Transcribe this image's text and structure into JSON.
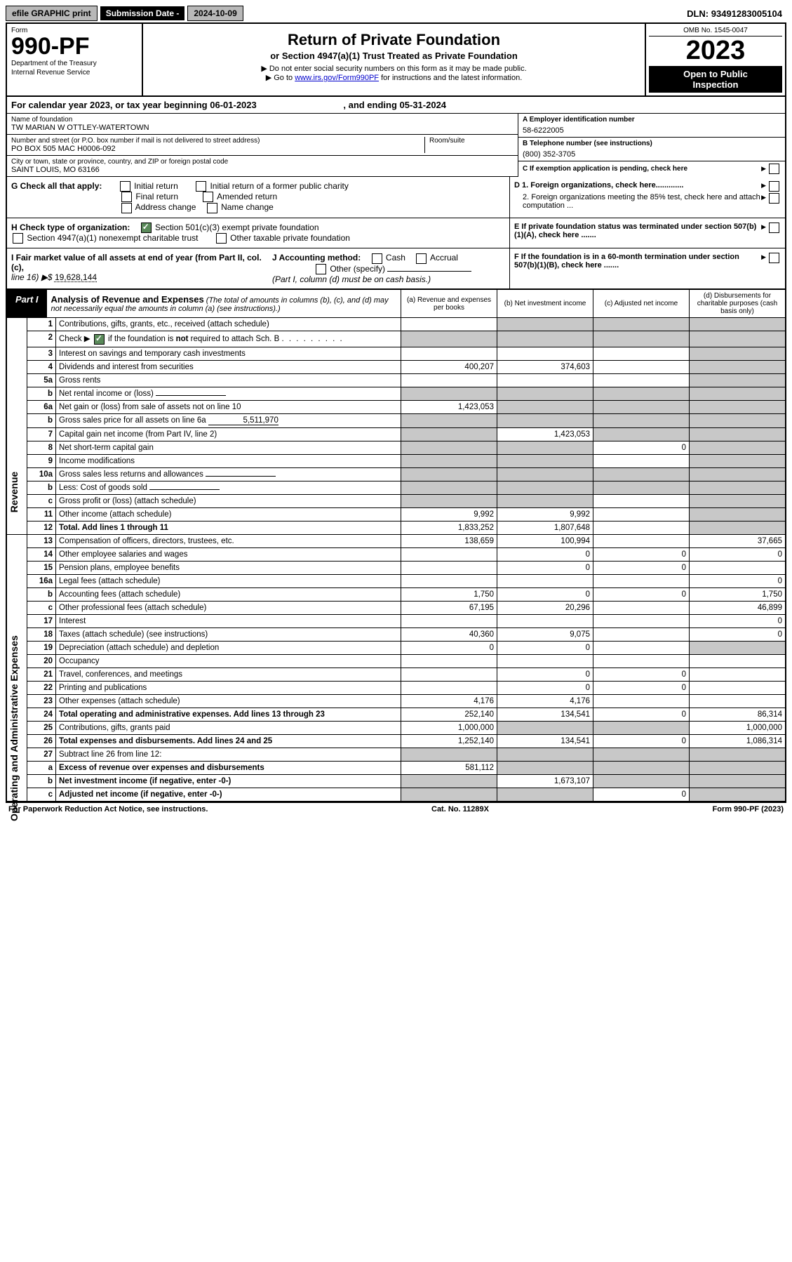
{
  "topbar": {
    "efile": "efile GRAPHIC print",
    "subdate_label": "Submission Date - ",
    "subdate": "2024-10-09",
    "dln_label": "DLN: ",
    "dln": "93491283005104"
  },
  "header": {
    "form_word": "Form",
    "form_number": "990-PF",
    "dept1": "Department of the Treasury",
    "dept2": "Internal Revenue Service",
    "title": "Return of Private Foundation",
    "subtitle": "or Section 4947(a)(1) Trust Treated as Private Foundation",
    "instr1": "▶ Do not enter social security numbers on this form as it may be made public.",
    "instr2_pre": "▶ Go to ",
    "instr2_link": "www.irs.gov/Form990PF",
    "instr2_post": " for instructions and the latest information.",
    "omb": "OMB No. 1545-0047",
    "year": "2023",
    "open1": "Open to Public",
    "open2": "Inspection"
  },
  "calyear": {
    "text_pre": "For calendar year 2023, or tax year beginning ",
    "begin": "06-01-2023",
    "text_mid": " , and ending ",
    "end": "05-31-2024"
  },
  "identity": {
    "name_label": "Name of foundation",
    "name": "TW MARIAN W OTTLEY-WATERTOWN",
    "addr_label": "Number and street (or P.O. box number if mail is not delivered to street address)",
    "addr": "PO BOX 505 MAC H0006-092",
    "room_label": "Room/suite",
    "city_label": "City or town, state or province, country, and ZIP or foreign postal code",
    "city": "SAINT LOUIS, MO  63166",
    "ein_label": "A Employer identification number",
    "ein": "58-6222005",
    "phone_label": "B Telephone number (see instructions)",
    "phone": "(800) 352-3705",
    "c_label": "C If exemption application is pending, check here",
    "d1": "D 1. Foreign organizations, check here.............",
    "d2": "2. Foreign organizations meeting the 85% test, check here and attach computation ...",
    "e_label": "E  If private foundation status was terminated under section 507(b)(1)(A), check here .......",
    "f_label": "F  If the foundation is in a 60-month termination under section 507(b)(1)(B), check here ......."
  },
  "g": {
    "label": "G Check all that apply:",
    "initial": "Initial return",
    "initial_former": "Initial return of a former public charity",
    "final": "Final return",
    "amended": "Amended return",
    "addr_change": "Address change",
    "name_change": "Name change"
  },
  "h": {
    "label": "H Check type of organization:",
    "opt1": "Section 501(c)(3) exempt private foundation",
    "opt2": "Section 4947(a)(1) nonexempt charitable trust",
    "opt3": "Other taxable private foundation"
  },
  "i": {
    "label": "I Fair market value of all assets at end of year (from Part II, col. (c),",
    "line": "line 16) ▶$",
    "value": "19,628,144"
  },
  "j": {
    "label": "J Accounting method:",
    "cash": "Cash",
    "accrual": "Accrual",
    "other": "Other (specify)",
    "note": "(Part I, column (d) must be on cash basis.)"
  },
  "part1": {
    "badge": "Part I",
    "title": "Analysis of Revenue and Expenses",
    "note": "(The total of amounts in columns (b), (c), and (d) may not necessarily equal the amounts in column (a) (see instructions).)",
    "col_a": "(a) Revenue and expenses per books",
    "col_b": "(b) Net investment income",
    "col_c": "(c) Adjusted net income",
    "col_d": "(d) Disbursements for charitable purposes (cash basis only)"
  },
  "side": {
    "revenue": "Revenue",
    "expenses": "Operating and Administrative Expenses"
  },
  "rows": [
    {
      "n": "1",
      "desc": "Contributions, gifts, grants, etc., received (attach schedule)",
      "a": "",
      "b": "shaded",
      "c": "shaded",
      "d": "shaded"
    },
    {
      "n": "2",
      "desc": "Check ▶ [✓] if the foundation is not required to attach Sch. B",
      "a": "shaded",
      "b": "shaded",
      "c": "shaded",
      "d": "shaded",
      "nob": true
    },
    {
      "n": "3",
      "desc": "Interest on savings and temporary cash investments",
      "a": "",
      "b": "",
      "c": "",
      "d": "shaded"
    },
    {
      "n": "4",
      "desc": "Dividends and interest from securities",
      "a": "400,207",
      "b": "374,603",
      "c": "",
      "d": "shaded"
    },
    {
      "n": "5a",
      "desc": "Gross rents",
      "a": "",
      "b": "",
      "c": "",
      "d": "shaded"
    },
    {
      "n": "b",
      "desc": "Net rental income or (loss)",
      "a": "shaded",
      "b": "shaded",
      "c": "shaded",
      "d": "shaded",
      "inline": ""
    },
    {
      "n": "6a",
      "desc": "Net gain or (loss) from sale of assets not on line 10",
      "a": "1,423,053",
      "b": "shaded",
      "c": "shaded",
      "d": "shaded"
    },
    {
      "n": "b",
      "desc": "Gross sales price for all assets on line 6a",
      "a": "shaded",
      "b": "shaded",
      "c": "shaded",
      "d": "shaded",
      "inline": "5,511,970"
    },
    {
      "n": "7",
      "desc": "Capital gain net income (from Part IV, line 2)",
      "a": "shaded",
      "b": "1,423,053",
      "c": "shaded",
      "d": "shaded"
    },
    {
      "n": "8",
      "desc": "Net short-term capital gain",
      "a": "shaded",
      "b": "shaded",
      "c": "0",
      "d": "shaded"
    },
    {
      "n": "9",
      "desc": "Income modifications",
      "a": "shaded",
      "b": "shaded",
      "c": "",
      "d": "shaded"
    },
    {
      "n": "10a",
      "desc": "Gross sales less returns and allowances",
      "a": "shaded",
      "b": "shaded",
      "c": "shaded",
      "d": "shaded",
      "inline": ""
    },
    {
      "n": "b",
      "desc": "Less: Cost of goods sold",
      "a": "shaded",
      "b": "shaded",
      "c": "shaded",
      "d": "shaded",
      "inline": ""
    },
    {
      "n": "c",
      "desc": "Gross profit or (loss) (attach schedule)",
      "a": "shaded",
      "b": "shaded",
      "c": "",
      "d": "shaded"
    },
    {
      "n": "11",
      "desc": "Other income (attach schedule)",
      "a": "9,992",
      "b": "9,992",
      "c": "",
      "d": "shaded"
    },
    {
      "n": "12",
      "desc": "Total. Add lines 1 through 11",
      "a": "1,833,252",
      "b": "1,807,648",
      "c": "",
      "d": "shaded",
      "bold": true
    },
    {
      "n": "13",
      "desc": "Compensation of officers, directors, trustees, etc.",
      "a": "138,659",
      "b": "100,994",
      "c": "",
      "d": "37,665"
    },
    {
      "n": "14",
      "desc": "Other employee salaries and wages",
      "a": "",
      "b": "0",
      "c": "0",
      "d": "0"
    },
    {
      "n": "15",
      "desc": "Pension plans, employee benefits",
      "a": "",
      "b": "0",
      "c": "0",
      "d": ""
    },
    {
      "n": "16a",
      "desc": "Legal fees (attach schedule)",
      "a": "",
      "b": "",
      "c": "",
      "d": "0"
    },
    {
      "n": "b",
      "desc": "Accounting fees (attach schedule)",
      "a": "1,750",
      "b": "0",
      "c": "0",
      "d": "1,750"
    },
    {
      "n": "c",
      "desc": "Other professional fees (attach schedule)",
      "a": "67,195",
      "b": "20,296",
      "c": "",
      "d": "46,899"
    },
    {
      "n": "17",
      "desc": "Interest",
      "a": "",
      "b": "",
      "c": "",
      "d": "0"
    },
    {
      "n": "18",
      "desc": "Taxes (attach schedule) (see instructions)",
      "a": "40,360",
      "b": "9,075",
      "c": "",
      "d": "0"
    },
    {
      "n": "19",
      "desc": "Depreciation (attach schedule) and depletion",
      "a": "0",
      "b": "0",
      "c": "",
      "d": "shaded"
    },
    {
      "n": "20",
      "desc": "Occupancy",
      "a": "",
      "b": "",
      "c": "",
      "d": ""
    },
    {
      "n": "21",
      "desc": "Travel, conferences, and meetings",
      "a": "",
      "b": "0",
      "c": "0",
      "d": ""
    },
    {
      "n": "22",
      "desc": "Printing and publications",
      "a": "",
      "b": "0",
      "c": "0",
      "d": ""
    },
    {
      "n": "23",
      "desc": "Other expenses (attach schedule)",
      "a": "4,176",
      "b": "4,176",
      "c": "",
      "d": ""
    },
    {
      "n": "24",
      "desc": "Total operating and administrative expenses. Add lines 13 through 23",
      "a": "252,140",
      "b": "134,541",
      "c": "0",
      "d": "86,314",
      "bold": true
    },
    {
      "n": "25",
      "desc": "Contributions, gifts, grants paid",
      "a": "1,000,000",
      "b": "shaded",
      "c": "shaded",
      "d": "1,000,000"
    },
    {
      "n": "26",
      "desc": "Total expenses and disbursements. Add lines 24 and 25",
      "a": "1,252,140",
      "b": "134,541",
      "c": "0",
      "d": "1,086,314",
      "bold": true
    },
    {
      "n": "27",
      "desc": "Subtract line 26 from line 12:",
      "a": "shaded",
      "b": "shaded",
      "c": "shaded",
      "d": "shaded"
    },
    {
      "n": "a",
      "desc": "Excess of revenue over expenses and disbursements",
      "a": "581,112",
      "b": "shaded",
      "c": "shaded",
      "d": "shaded",
      "bold": true
    },
    {
      "n": "b",
      "desc": "Net investment income (if negative, enter -0-)",
      "a": "shaded",
      "b": "1,673,107",
      "c": "shaded",
      "d": "shaded",
      "bold": true
    },
    {
      "n": "c",
      "desc": "Adjusted net income (if negative, enter -0-)",
      "a": "shaded",
      "b": "shaded",
      "c": "0",
      "d": "shaded",
      "bold": true
    }
  ],
  "footer": {
    "left": "For Paperwork Reduction Act Notice, see instructions.",
    "center": "Cat. No. 11289X",
    "right": "Form 990-PF (2023)"
  },
  "style": {
    "shaded_bg": "#c8c8c8",
    "black": "#000000",
    "link": "#0000cc",
    "check_green": "#5a8a5a"
  }
}
